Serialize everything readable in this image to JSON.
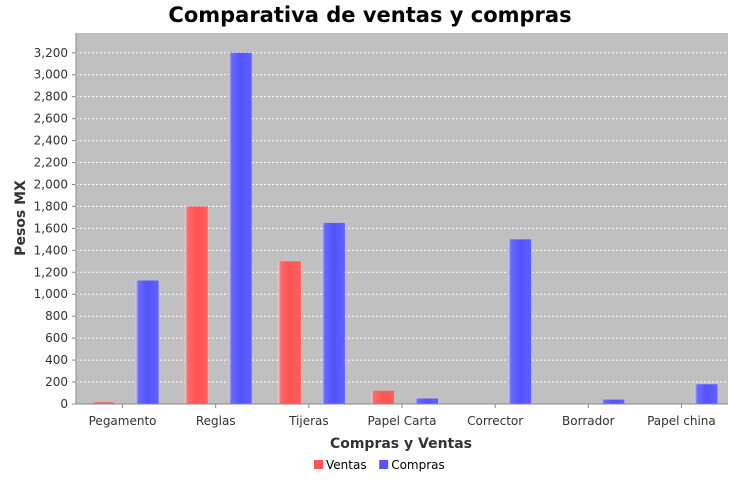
{
  "chart_data": {
    "type": "bar",
    "title": "Comparativa de ventas y compras",
    "xlabel": "Compras y Ventas",
    "ylabel": "Pesos MX",
    "categories": [
      "Pegamento",
      "Reglas",
      "Tijeras",
      "Papel Carta",
      "Corrector",
      "Borrador",
      "Papel china"
    ],
    "series": [
      {
        "name": "Ventas",
        "color": "#ff5555",
        "values": [
          15,
          1800,
          1300,
          120,
          0,
          0,
          0
        ]
      },
      {
        "name": "Compras",
        "color": "#5555ff",
        "values": [
          1125,
          3200,
          1650,
          50,
          1500,
          40,
          180
        ]
      }
    ],
    "ylim": [
      0,
      3380
    ],
    "yticks": [
      0,
      200,
      400,
      600,
      800,
      1000,
      1200,
      1400,
      1600,
      1800,
      2000,
      2200,
      2400,
      2600,
      2800,
      3000,
      3200
    ],
    "ytick_labels": [
      "0",
      "200",
      "400",
      "600",
      "800",
      "1,000",
      "1,200",
      "1,400",
      "1,600",
      "1,800",
      "2,000",
      "2,200",
      "2,400",
      "2,600",
      "2,800",
      "3,000",
      "3,200"
    ],
    "grid": true,
    "legend": "bottom",
    "plot_background": "#c0c0c0"
  }
}
